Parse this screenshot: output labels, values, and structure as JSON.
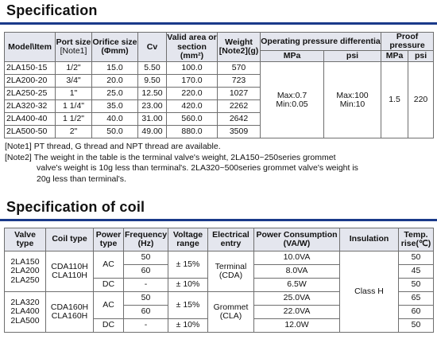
{
  "spec": {
    "title": "Specification",
    "headers": {
      "model": "Model\\Item",
      "port_size": "Port size",
      "port_note": "[Note1]",
      "orifice": "Orifice size",
      "orifice_unit": "(Φmm)",
      "cv": "Cv",
      "area": "Valid area or",
      "area_unit": "section (mm²)",
      "weight": "Weight",
      "weight_unit": "[Note2](g)",
      "op_pressure": "Operating pressure differentia",
      "proof_pressure": "Proof pressure",
      "mpa": "MPa",
      "psi": "psi",
      "proof_mpa": "MPa",
      "proof_psi": "psi"
    },
    "rows": [
      {
        "model": "2LA150-15",
        "port": "1/2\"",
        "orifice": "15.0",
        "cv": "5.50",
        "area": "100.0",
        "weight": "570"
      },
      {
        "model": "2LA200-20",
        "port": "3/4\"",
        "orifice": "20.0",
        "cv": "9.50",
        "area": "170.0",
        "weight": "723"
      },
      {
        "model": "2LA250-25",
        "port": "1\"",
        "orifice": "25.0",
        "cv": "12.50",
        "area": "220.0",
        "weight": "1027"
      },
      {
        "model": "2LA320-32",
        "port": "1 1/4\"",
        "orifice": "35.0",
        "cv": "23.00",
        "area": "420.0",
        "weight": "2262"
      },
      {
        "model": "2LA400-40",
        "port": "1 1/2\"",
        "orifice": "40.0",
        "cv": "31.00",
        "area": "560.0",
        "weight": "2642"
      },
      {
        "model": "2LA500-50",
        "port": "2\"",
        "orifice": "50.0",
        "cv": "49.00",
        "area": "880.0",
        "weight": "3509"
      }
    ],
    "op_mpa_max": "Max:0.7",
    "op_mpa_min": "Min:0.05",
    "op_psi_max": "Max:100",
    "op_psi_min": "Min:10",
    "proof_mpa": "1.5",
    "proof_psi": "220"
  },
  "notes": {
    "note1": "[Note1] PT thread, G thread and NPT thread are available.",
    "note2_line1": "[Note2] The weight in the table is the terminal valve's weight, 2LA150~250series grommet",
    "note2_line2": "valve's weight is 10g less than terminal's. 2LA320~500series grommet valve's weight is",
    "note2_line3": "20g less than terminal's."
  },
  "coil": {
    "title": "Specification of coil",
    "headers": {
      "valve": "Valve",
      "valve2": "type",
      "coil": "Coil type",
      "power": "Power",
      "power2": "type",
      "freq": "Frequency",
      "freq2": "(Hz)",
      "voltage": "Voltage",
      "voltage2": "range",
      "entry": "Electrical",
      "entry2": "entry",
      "consumption": "Power Consumption",
      "consumption2": "(VA/W)",
      "insulation": "Insulation",
      "temp": "Temp.",
      "temp2": "rise(℃)"
    },
    "group1": {
      "valves": [
        "2LA150",
        "2LA200",
        "2LA250"
      ],
      "coils": [
        "CDA110H",
        "CLA110H"
      ]
    },
    "group2": {
      "valves": [
        "2LA320",
        "2LA400",
        "2LA500"
      ],
      "coils": [
        "CDA160H",
        "CLA160H"
      ]
    },
    "ac": "AC",
    "dc": "DC",
    "freq_50": "50",
    "freq_60": "60",
    "dash": "-",
    "v_ac": "± 15%",
    "v_dc": "± 10%",
    "entry_terminal": "Terminal",
    "entry_terminal2": "(CDA)",
    "entry_grommet": "Grommet",
    "entry_grommet2": "(CLA)",
    "consumption": [
      "10.0VA",
      "8.0VA",
      "6.5W",
      "25.0VA",
      "22.0VA",
      "12.0W"
    ],
    "insulation": "Class H",
    "temp": [
      "50",
      "45",
      "50",
      "65",
      "60",
      "50"
    ]
  }
}
